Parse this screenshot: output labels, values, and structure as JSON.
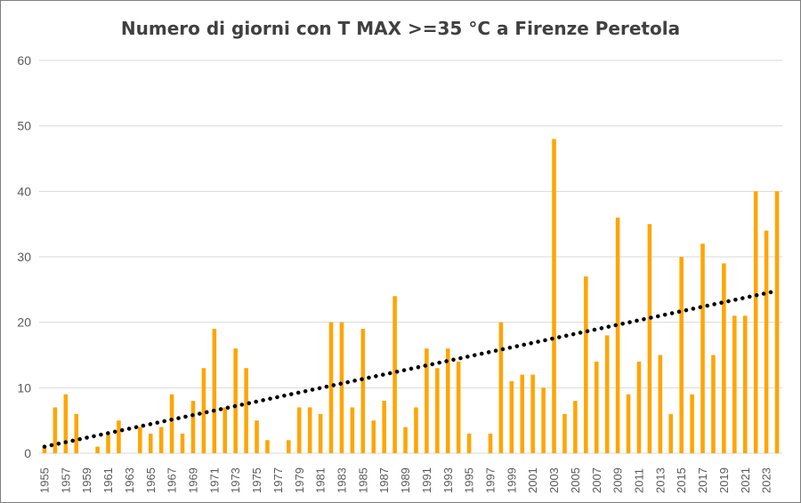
{
  "chart_data": {
    "type": "bar",
    "title": "Numero di giorni con T MAX >=35 °C a Firenze Peretola",
    "xlabel": "",
    "ylabel": "",
    "ylim": [
      0,
      60
    ],
    "yticks": [
      0,
      10,
      20,
      30,
      40,
      50,
      60
    ],
    "grid": true,
    "legend": "none",
    "bar_color": "#ffa500",
    "trend_color": "#000000",
    "categories": [
      1955,
      1956,
      1957,
      1958,
      1959,
      1960,
      1961,
      1962,
      1963,
      1964,
      1965,
      1966,
      1967,
      1968,
      1969,
      1970,
      1971,
      1972,
      1973,
      1974,
      1975,
      1976,
      1977,
      1978,
      1979,
      1980,
      1981,
      1982,
      1983,
      1984,
      1985,
      1986,
      1987,
      1988,
      1989,
      1990,
      1991,
      1992,
      1993,
      1994,
      1995,
      1996,
      1997,
      1998,
      1999,
      2000,
      2001,
      2002,
      2003,
      2004,
      2005,
      2006,
      2007,
      2008,
      2009,
      2010,
      2011,
      2012,
      2013,
      2014,
      2015,
      2016,
      2017,
      2018,
      2019,
      2020,
      2021,
      2022,
      2023,
      2024
    ],
    "x_tick_labels": [
      1955,
      1957,
      1959,
      1961,
      1963,
      1965,
      1967,
      1969,
      1971,
      1973,
      1975,
      1977,
      1979,
      1981,
      1983,
      1985,
      1987,
      1989,
      1991,
      1993,
      1995,
      1997,
      1999,
      2001,
      2003,
      2005,
      2007,
      2009,
      2011,
      2013,
      2015,
      2017,
      2019,
      2021,
      2023
    ],
    "series": [
      {
        "values": [
          1,
          7,
          9,
          6,
          0,
          1,
          3,
          5,
          0,
          4,
          3,
          4,
          9,
          3,
          8,
          13,
          19,
          7,
          16,
          13,
          5,
          2,
          0,
          2,
          7,
          7,
          6,
          20,
          20,
          7,
          19,
          5,
          8,
          24,
          4,
          7,
          16,
          13,
          16,
          14,
          3,
          0,
          3,
          20,
          11,
          12,
          12,
          10,
          48,
          6,
          8,
          27,
          14,
          18,
          36,
          9,
          14,
          35,
          15,
          6,
          30,
          9,
          32,
          15,
          29,
          21,
          21,
          40,
          34,
          40
        ]
      }
    ],
    "trendline": {
      "type": "linear",
      "start": [
        1955,
        1.0
      ],
      "end": [
        2024,
        24.8
      ]
    }
  }
}
